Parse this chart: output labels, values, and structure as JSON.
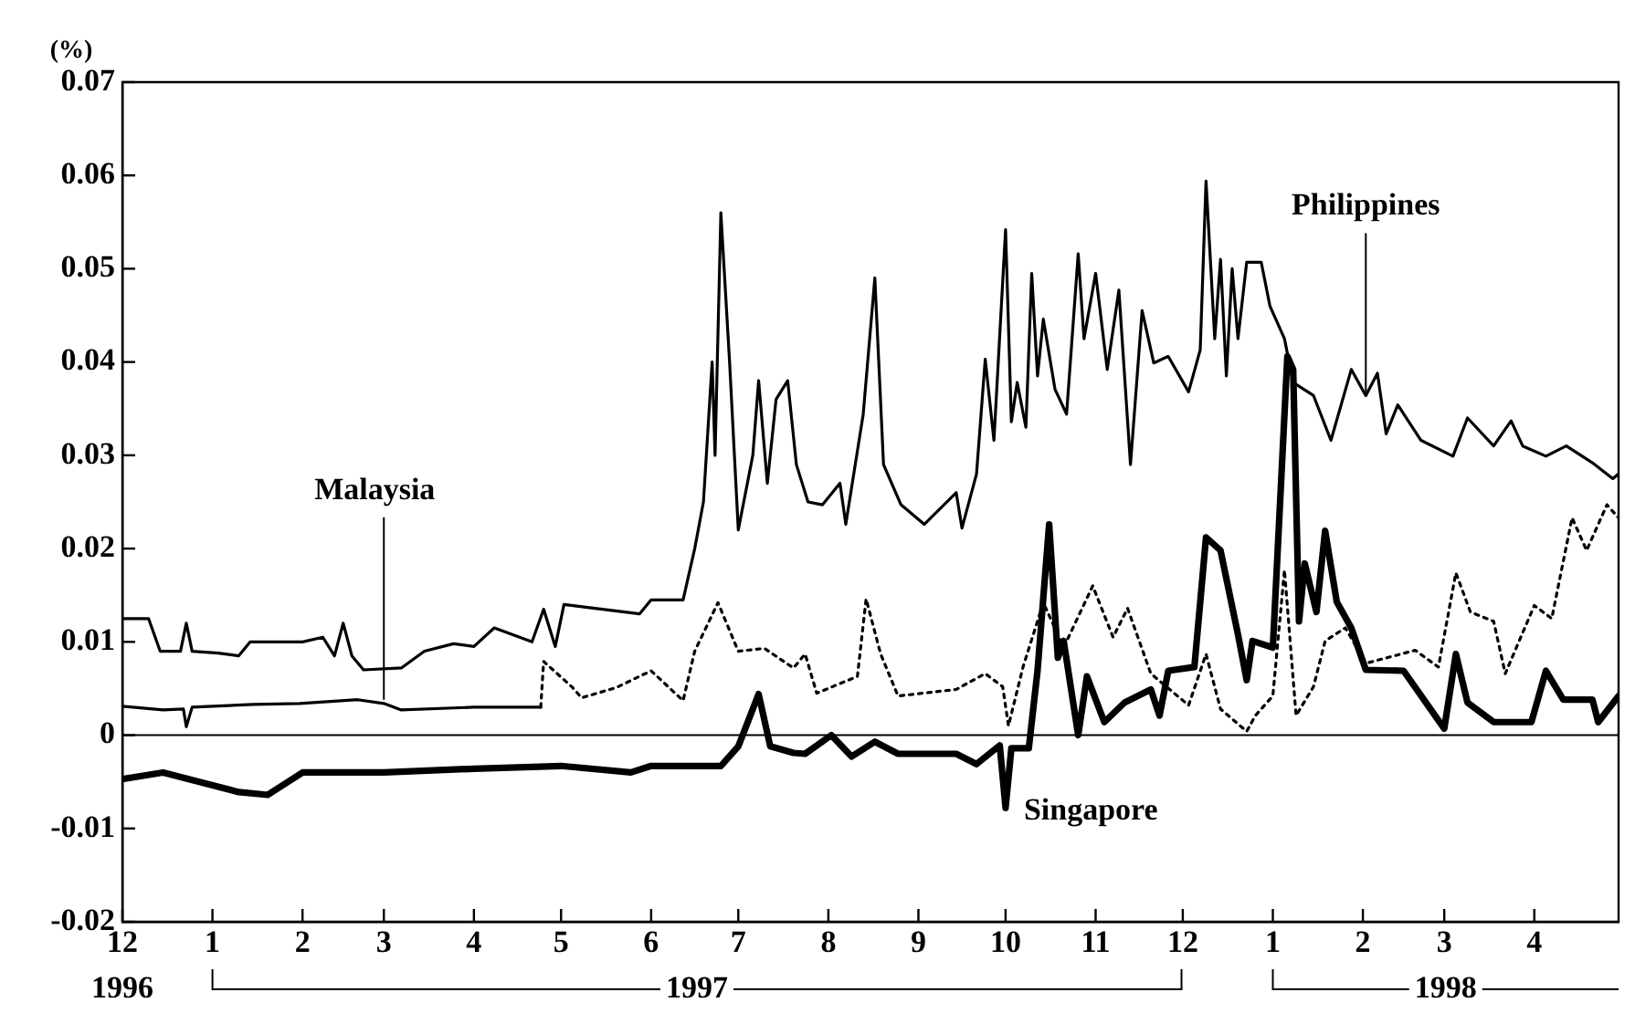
{
  "chart_data": {
    "type": "line",
    "ylabel": "(%)",
    "xlim": [
      "1996-12-01",
      "1998-04-30"
    ],
    "ylim": [
      -0.02,
      0.07
    ],
    "yticks": [
      -0.02,
      -0.01,
      0,
      0.01,
      0.02,
      0.03,
      0.04,
      0.05,
      0.06,
      0.07
    ],
    "xticks": [
      {
        "value": "1996-12",
        "label": "12"
      },
      {
        "value": "1997-01",
        "label": "1"
      },
      {
        "value": "1997-02",
        "label": "2"
      },
      {
        "value": "1997-03",
        "label": "3"
      },
      {
        "value": "1997-04",
        "label": "4"
      },
      {
        "value": "1997-05",
        "label": "5"
      },
      {
        "value": "1997-06",
        "label": "6"
      },
      {
        "value": "1997-07",
        "label": "7"
      },
      {
        "value": "1997-08",
        "label": "8"
      },
      {
        "value": "1997-09",
        "label": "9"
      },
      {
        "value": "1997-10",
        "label": "10"
      },
      {
        "value": "1997-11",
        "label": "11"
      },
      {
        "value": "1997-12",
        "label": "12"
      },
      {
        "value": "1998-01",
        "label": "1"
      },
      {
        "value": "1998-02",
        "label": "2"
      },
      {
        "value": "1998-03",
        "label": "3"
      },
      {
        "value": "1998-04",
        "label": "4"
      }
    ],
    "grid": false,
    "legend": false,
    "marker": "none",
    "ref_lines": [
      {
        "axis": "y",
        "value": 0,
        "color": "#000000"
      }
    ],
    "annotations": [
      "1996",
      "1997",
      "1998"
    ],
    "series": [
      {
        "name": "Philippines",
        "color": "#000000",
        "line_style": "solid",
        "x": [
          "1996-12-01",
          "1996-12-10",
          "1996-12-14",
          "1996-12-21",
          "1996-12-23",
          "1996-12-25",
          "1997-01-03",
          "1997-01-10",
          "1997-01-14",
          "1997-02-01",
          "1997-02-08",
          "1997-02-12",
          "1997-02-15",
          "1997-02-18",
          "1997-02-22",
          "1997-03-07",
          "1997-03-15",
          "1997-03-25",
          "1997-04-01",
          "1997-04-08",
          "1997-04-21",
          "1997-04-25",
          "1997-04-29",
          "1997-05-02",
          "1997-05-28",
          "1997-06-01",
          "1997-06-12",
          "1997-06-16",
          "1997-06-19",
          "1997-06-22",
          "1997-06-23",
          "1997-06-25",
          "1997-06-28",
          "1997-07-01",
          "1997-07-06",
          "1997-07-08",
          "1997-07-11",
          "1997-07-14",
          "1997-07-18",
          "1997-07-21",
          "1997-07-25",
          "1997-07-30",
          "1997-08-05",
          "1997-08-07",
          "1997-08-13",
          "1997-08-17",
          "1997-08-20",
          "1997-08-26",
          "1997-09-03",
          "1997-09-14",
          "1997-09-16",
          "1997-09-21",
          "1997-09-24",
          "1997-09-27",
          "1997-10-01",
          "1997-10-03",
          "1997-10-05",
          "1997-10-08",
          "1997-10-10",
          "1997-10-12",
          "1997-10-14",
          "1997-10-18",
          "1997-10-22",
          "1997-10-26",
          "1997-10-28",
          "1997-11-01",
          "1997-11-05",
          "1997-11-09",
          "1997-11-13",
          "1997-11-17",
          "1997-11-21",
          "1997-11-26",
          "1997-12-03",
          "1997-12-07",
          "1997-12-09",
          "1997-12-12",
          "1997-12-14",
          "1997-12-16",
          "1997-12-18",
          "1997-12-20",
          "1997-12-23",
          "1997-12-28",
          "1997-12-31",
          "1998-01-05",
          "1998-01-08",
          "1998-01-15",
          "1998-01-21",
          "1998-01-28",
          "1998-02-02",
          "1998-02-06",
          "1998-02-09",
          "1998-02-13",
          "1998-02-21",
          "1998-03-04",
          "1998-03-09",
          "1998-03-18",
          "1998-03-24",
          "1998-03-28",
          "1998-04-05",
          "1998-04-12",
          "1998-04-21",
          "1998-04-28",
          "1998-04-30"
        ],
        "values": [
          0.0125,
          0.0125,
          0.009,
          0.009,
          0.012,
          0.009,
          0.0088,
          0.0085,
          0.01,
          0.01,
          0.0105,
          0.0085,
          0.012,
          0.0085,
          0.007,
          0.0072,
          0.009,
          0.0098,
          0.0095,
          0.0115,
          0.01,
          0.0135,
          0.0095,
          0.014,
          0.013,
          0.0145,
          0.0145,
          0.02,
          0.025,
          0.04,
          0.03,
          0.056,
          0.04,
          0.022,
          0.03,
          0.038,
          0.027,
          0.036,
          0.038,
          0.029,
          0.025,
          0.0247,
          0.027,
          0.0226,
          0.0344,
          0.049,
          0.029,
          0.0247,
          0.0226,
          0.026,
          0.0222,
          0.028,
          0.0403,
          0.0316,
          0.0542,
          0.0336,
          0.0378,
          0.033,
          0.0495,
          0.0385,
          0.0446,
          0.0371,
          0.0344,
          0.0516,
          0.0425,
          0.0495,
          0.0392,
          0.0477,
          0.029,
          0.0455,
          0.0399,
          0.0406,
          0.0368,
          0.0413,
          0.0594,
          0.0425,
          0.051,
          0.0385,
          0.05,
          0.0425,
          0.0507,
          0.0507,
          0.046,
          0.0425,
          0.0378,
          0.0364,
          0.0316,
          0.0392,
          0.0364,
          0.0388,
          0.0323,
          0.0354,
          0.0316,
          0.0299,
          0.034,
          0.031,
          0.0337,
          0.031,
          0.0299,
          0.031,
          0.0292,
          0.0275,
          0.028
        ]
      },
      {
        "name": "Malaysia",
        "color": "#000000",
        "line_style": "solid",
        "x": [
          "1996-12-01",
          "1996-12-15",
          "1996-12-22",
          "1996-12-23",
          "1996-12-25",
          "1997-01-15",
          "1997-01-31",
          "1997-02-20",
          "1997-03-01",
          "1997-03-07",
          "1997-04-01",
          "1997-04-24"
        ],
        "values": [
          0.0031,
          0.0027,
          0.0028,
          0.0009,
          0.003,
          0.0033,
          0.0034,
          0.0038,
          0.0034,
          0.0027,
          0.003,
          0.003
        ]
      },
      {
        "color": "#000000",
        "line_style": "dotted",
        "x": [
          "1997-04-24",
          "1997-04-25",
          "1997-05-05",
          "1997-05-08",
          "1997-05-20",
          "1997-06-01",
          "1997-06-12",
          "1997-06-16",
          "1997-06-24",
          "1997-07-01",
          "1997-07-10",
          "1997-07-20",
          "1997-07-24",
          "1997-07-28",
          "1997-08-11",
          "1997-08-14",
          "1997-08-19",
          "1997-08-25",
          "1997-09-14",
          "1997-09-24",
          "1997-09-30",
          "1997-10-02",
          "1997-10-07",
          "1997-10-14",
          "1997-10-21",
          "1997-10-31",
          "1997-11-07",
          "1997-11-12",
          "1997-11-20",
          "1997-12-03",
          "1997-12-09",
          "1997-12-14",
          "1997-12-23",
          "1997-12-26",
          "1998-01-01",
          "1998-01-05",
          "1998-01-09",
          "1998-01-15",
          "1998-01-19",
          "1998-01-26",
          "1998-02-02",
          "1998-02-19",
          "1998-02-27",
          "1998-03-05",
          "1998-03-10",
          "1998-03-18",
          "1998-03-22",
          "1998-04-01",
          "1998-04-07",
          "1998-04-14",
          "1998-04-19",
          "1998-04-26",
          "1998-04-30"
        ],
        "values": [
          0.003,
          0.0079,
          0.0051,
          0.004,
          0.0051,
          0.0069,
          0.0037,
          0.009,
          0.0142,
          0.009,
          0.0093,
          0.0072,
          0.0087,
          0.0045,
          0.0063,
          0.0146,
          0.0087,
          0.0042,
          0.0049,
          0.0066,
          0.0052,
          0.001,
          0.0073,
          0.0142,
          0.0094,
          0.016,
          0.0105,
          0.0136,
          0.0066,
          0.0032,
          0.0087,
          0.0028,
          0.0004,
          0.0021,
          0.0042,
          0.0177,
          0.0021,
          0.0052,
          0.0101,
          0.0115,
          0.0077,
          0.0091,
          0.0073,
          0.0174,
          0.0132,
          0.0122,
          0.0066,
          0.0139,
          0.0125,
          0.0233,
          0.0198,
          0.0247,
          0.0233
        ]
      },
      {
        "name": "Singapore",
        "color": "#000000",
        "line_style": "solid",
        "x": [
          "1996-12-01",
          "1996-12-15",
          "1997-01-10",
          "1997-01-20",
          "1997-02-01",
          "1997-03-01",
          "1997-04-01",
          "1997-05-01",
          "1997-05-25",
          "1997-06-01",
          "1997-06-25",
          "1997-07-01",
          "1997-07-08",
          "1997-07-12",
          "1997-07-20",
          "1997-07-24",
          "1997-08-02",
          "1997-08-09",
          "1997-08-17",
          "1997-08-25",
          "1997-09-14",
          "1997-09-21",
          "1997-09-29",
          "1997-10-01",
          "1997-10-03",
          "1997-10-09",
          "1997-10-12",
          "1997-10-16",
          "1997-10-19",
          "1997-10-21",
          "1997-10-26",
          "1997-10-29",
          "1997-11-04",
          "1997-11-11",
          "1997-11-20",
          "1997-11-23",
          "1997-11-26",
          "1997-12-05",
          "1997-12-09",
          "1997-12-14",
          "1997-12-20",
          "1997-12-23",
          "1997-12-25",
          "1998-01-01",
          "1998-01-06",
          "1998-01-08",
          "1998-01-10",
          "1998-01-12",
          "1998-01-16",
          "1998-01-19",
          "1998-01-23",
          "1998-01-28",
          "1998-02-02",
          "1998-02-15",
          "1998-03-01",
          "1998-03-05",
          "1998-03-09",
          "1998-03-18",
          "1998-03-31",
          "1998-04-05",
          "1998-04-11",
          "1998-04-21",
          "1998-04-23",
          "1998-04-30"
        ],
        "values": [
          -0.0047,
          -0.004,
          -0.0061,
          -0.0064,
          -0.004,
          -0.004,
          -0.0036,
          -0.0033,
          -0.004,
          -0.0033,
          -0.0033,
          -0.0012,
          0.0044,
          -0.0012,
          -0.0019,
          -0.002,
          0.0,
          -0.0023,
          -0.0007,
          -0.002,
          -0.002,
          -0.0031,
          -0.0011,
          -0.0078,
          -0.0014,
          -0.0014,
          0.0069,
          0.0226,
          0.0083,
          0.0101,
          0.0,
          0.0063,
          0.0014,
          0.0035,
          0.0049,
          0.0021,
          0.0069,
          0.0073,
          0.0212,
          0.0198,
          0.0108,
          0.0059,
          0.0101,
          0.0094,
          0.0406,
          0.0392,
          0.0122,
          0.0184,
          0.0132,
          0.0219,
          0.0143,
          0.0115,
          0.007,
          0.0069,
          0.0007,
          0.0087,
          0.0035,
          0.0014,
          0.0014,
          0.0069,
          0.0038,
          0.0038,
          0.0014,
          0.0042
        ]
      }
    ]
  }
}
